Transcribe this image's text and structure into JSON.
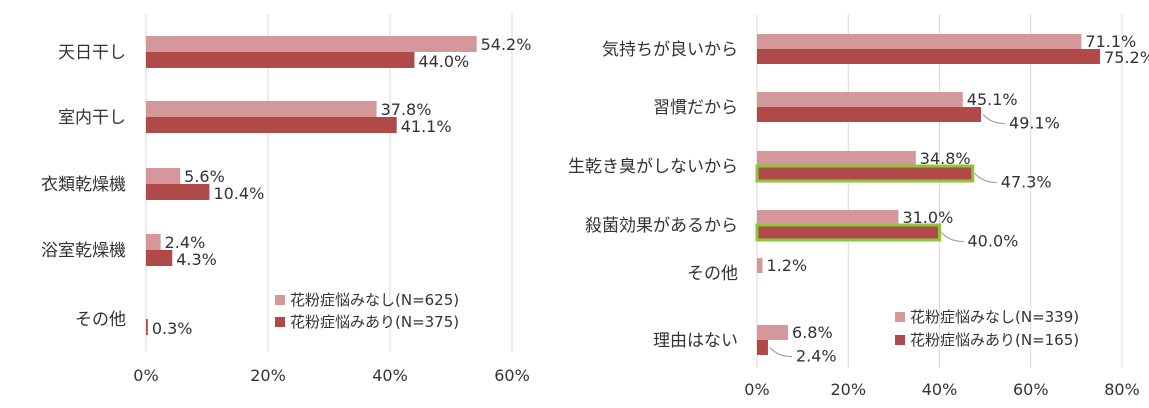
{
  "chart_data": [
    {
      "type": "bar",
      "orientation": "horizontal",
      "categories": [
        "天日干し",
        "室内干し",
        "衣類乾燥機",
        "浴室乾燥機",
        "その他"
      ],
      "series": [
        {
          "name": "花粉症悩みなし(N=625)",
          "color": "#d4979a",
          "values": [
            54.2,
            37.8,
            5.6,
            2.4,
            0.0
          ]
        },
        {
          "name": "花粉症悩みあり(N=375)",
          "color": "#b04a48",
          "values": [
            44.0,
            41.1,
            10.4,
            4.3,
            0.3
          ]
        }
      ],
      "value_labels": [
        [
          "54.2%",
          "37.8%",
          "5.6%",
          "2.4%",
          ""
        ],
        [
          "44.0%",
          "41.1%",
          "10.4%",
          "4.3%",
          "0.3%"
        ]
      ],
      "xlim": [
        0,
        60
      ],
      "xticks": [
        "0%",
        "20%",
        "40%",
        "60%"
      ],
      "grid": true,
      "legend": "bottom-right"
    },
    {
      "type": "bar",
      "orientation": "horizontal",
      "categories": [
        "気持ちが良いから",
        "習慣だから",
        "生乾き臭がしないから",
        "殺菌効果があるから",
        "その他",
        "理由はない"
      ],
      "series": [
        {
          "name": "花粉症悩みなし(N=339)",
          "color": "#d4979a",
          "values": [
            71.1,
            45.1,
            34.8,
            31.0,
            1.2,
            6.8
          ]
        },
        {
          "name": "花粉症悩みあり(N=165)",
          "color": "#b04a48",
          "values": [
            75.2,
            49.1,
            47.3,
            40.0,
            0.0,
            2.4
          ]
        }
      ],
      "value_labels": [
        [
          "71.1%",
          "45.1%",
          "34.8%",
          "31.0%",
          "1.2%",
          "6.8%"
        ],
        [
          "75.2%",
          "49.1%",
          "47.3%",
          "40.0%",
          "",
          "2.4%"
        ]
      ],
      "highlighted_bars": [
        [
          1,
          2
        ],
        [
          1,
          3
        ]
      ],
      "highlight_color": "#8cc63f",
      "xlim": [
        0,
        80
      ],
      "xticks": [
        "0%",
        "20%",
        "40%",
        "60%",
        "80%"
      ],
      "grid": true,
      "legend": "bottom-right"
    }
  ]
}
